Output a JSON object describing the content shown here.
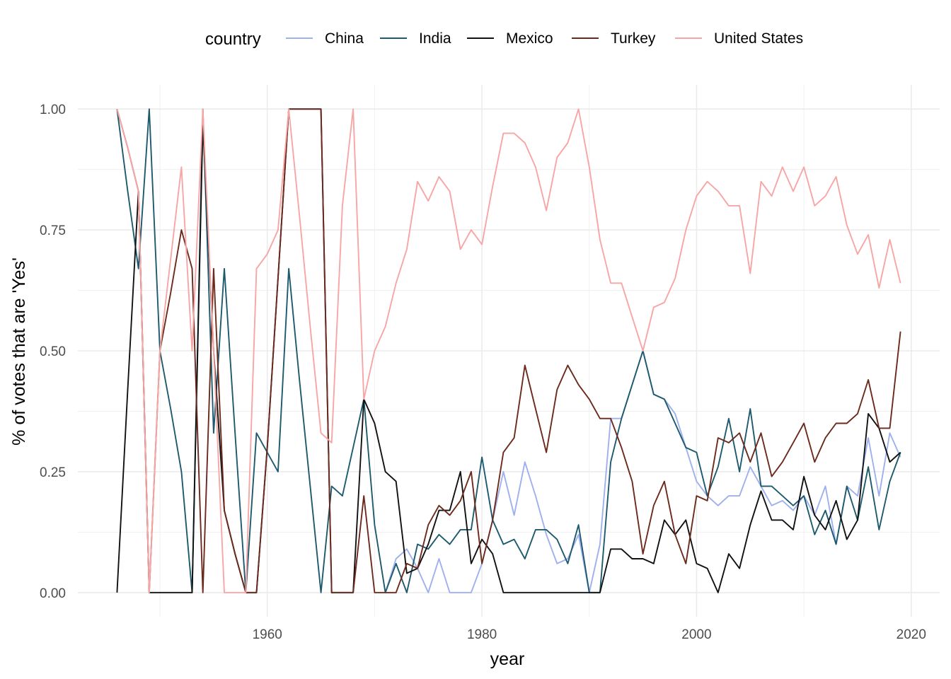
{
  "chart_data": {
    "type": "line",
    "title": "",
    "xlabel": "year",
    "ylabel": "% of votes that are 'Yes'",
    "xlim": [
      1946,
      2019
    ],
    "ylim": [
      0,
      1
    ],
    "x_ticks": [
      "1960",
      "1980",
      "2000",
      "2020"
    ],
    "x_tick_values": [
      1960,
      1980,
      2000,
      2020
    ],
    "y_ticks": [
      "0.00",
      "0.25",
      "0.50",
      "0.75",
      "1.00"
    ],
    "y_tick_values": [
      0,
      0.25,
      0.5,
      0.75,
      1.0
    ],
    "grid": true,
    "legend": {
      "title": "country",
      "position": "top"
    },
    "series": [
      {
        "name": "China",
        "color": "#9fb0ee",
        "x": [
          1971,
          1972,
          1973,
          1974,
          1975,
          1976,
          1977,
          1978,
          1979,
          1980,
          1981,
          1982,
          1983,
          1984,
          1985,
          1986,
          1987,
          1988,
          1989,
          1990,
          1991,
          1992,
          1993,
          1994,
          1995,
          1996,
          1997,
          1998,
          1999,
          2000,
          2001,
          2002,
          2003,
          2004,
          2005,
          2006,
          2007,
          2008,
          2009,
          2010,
          2011,
          2012,
          2013,
          2014,
          2015,
          2016,
          2017,
          2018,
          2019
        ],
        "values": [
          0.0,
          0.07,
          0.09,
          0.05,
          0.0,
          0.07,
          0.0,
          0.0,
          0.0,
          0.06,
          0.15,
          0.25,
          0.16,
          0.27,
          0.2,
          0.12,
          0.06,
          0.07,
          0.12,
          0.0,
          0.1,
          0.36,
          0.36,
          0.43,
          0.5,
          0.41,
          0.4,
          0.37,
          0.3,
          0.23,
          0.2,
          0.18,
          0.2,
          0.2,
          0.26,
          0.22,
          0.18,
          0.19,
          0.17,
          0.2,
          0.16,
          0.22,
          0.1,
          0.22,
          0.2,
          0.32,
          0.2,
          0.33,
          0.28
        ]
      },
      {
        "name": "India",
        "color": "#1d5a6e",
        "x": [
          1946,
          1947,
          1948,
          1949,
          1950,
          1951,
          1952,
          1953,
          1954,
          1955,
          1956,
          1957,
          1958,
          1959,
          1960,
          1961,
          1962,
          1963,
          1964,
          1965,
          1966,
          1967,
          1968,
          1969,
          1970,
          1971,
          1972,
          1973,
          1974,
          1975,
          1976,
          1977,
          1978,
          1979,
          1980,
          1981,
          1982,
          1983,
          1984,
          1985,
          1986,
          1987,
          1988,
          1989,
          1990,
          1991,
          1992,
          1993,
          1994,
          1995,
          1996,
          1997,
          1998,
          1999,
          2000,
          2001,
          2002,
          2003,
          2004,
          2005,
          2006,
          2007,
          2008,
          2009,
          2010,
          2011,
          2012,
          2013,
          2014,
          2015,
          2016,
          2017,
          2018,
          2019
        ],
        "values": [
          1.0,
          0.83,
          0.67,
          1.0,
          0.5,
          0.38,
          0.25,
          0.0,
          1.0,
          0.33,
          0.67,
          0.33,
          0.0,
          0.33,
          0.29,
          0.25,
          0.67,
          0.44,
          0.22,
          0.0,
          0.22,
          0.2,
          0.3,
          0.4,
          0.14,
          0.0,
          0.06,
          0.0,
          0.1,
          0.09,
          0.12,
          0.1,
          0.13,
          0.13,
          0.28,
          0.15,
          0.1,
          0.11,
          0.07,
          0.13,
          0.13,
          0.11,
          0.06,
          0.14,
          0.0,
          0.0,
          0.27,
          0.36,
          0.43,
          0.5,
          0.41,
          0.4,
          0.35,
          0.3,
          0.29,
          0.2,
          0.26,
          0.36,
          0.25,
          0.38,
          0.22,
          0.22,
          0.2,
          0.18,
          0.2,
          0.12,
          0.17,
          0.1,
          0.22,
          0.15,
          0.26,
          0.13,
          0.23,
          0.29
        ]
      },
      {
        "name": "Mexico",
        "color": "#111111",
        "x": [
          1946,
          1947,
          1948,
          1949,
          1950,
          1951,
          1952,
          1953,
          1954,
          1955,
          1956,
          1957,
          1958,
          1959,
          1960,
          1961,
          1962,
          1963,
          1964,
          1965,
          1966,
          1967,
          1968,
          1969,
          1970,
          1971,
          1972,
          1973,
          1974,
          1975,
          1976,
          1977,
          1978,
          1979,
          1980,
          1981,
          1982,
          1983,
          1984,
          1985,
          1986,
          1987,
          1988,
          1989,
          1990,
          1991,
          1992,
          1993,
          1994,
          1995,
          1996,
          1997,
          1998,
          1999,
          2000,
          2001,
          2002,
          2003,
          2004,
          2005,
          2006,
          2007,
          2008,
          2009,
          2010,
          2011,
          2012,
          2013,
          2014,
          2015,
          2016,
          2017,
          2018,
          2019
        ],
        "values": [
          0.0,
          0.42,
          0.83,
          0.0,
          0.0,
          0.0,
          0.0,
          0.0,
          0.97,
          0.5,
          0.17,
          0.08,
          0.0,
          0.0,
          0.3,
          0.65,
          1.0,
          1.0,
          1.0,
          1.0,
          0.0,
          0.0,
          0.0,
          0.4,
          0.35,
          0.25,
          0.23,
          0.04,
          0.05,
          0.1,
          0.17,
          0.17,
          0.25,
          0.06,
          0.11,
          0.08,
          0.0,
          0.0,
          0.0,
          0.0,
          0.0,
          0.0,
          0.0,
          0.0,
          0.0,
          0.0,
          0.09,
          0.09,
          0.07,
          0.07,
          0.06,
          0.15,
          0.12,
          0.15,
          0.06,
          0.05,
          0.0,
          0.08,
          0.05,
          0.14,
          0.21,
          0.15,
          0.15,
          0.13,
          0.24,
          0.16,
          0.13,
          0.19,
          0.11,
          0.15,
          0.37,
          0.34,
          0.27,
          0.29
        ]
      },
      {
        "name": "Turkey",
        "color": "#6b2a1c",
        "x": [
          1946,
          1947,
          1948,
          1949,
          1950,
          1951,
          1952,
          1953,
          1954,
          1955,
          1956,
          1957,
          1958,
          1959,
          1960,
          1961,
          1962,
          1963,
          1964,
          1965,
          1966,
          1967,
          1968,
          1969,
          1970,
          1971,
          1972,
          1973,
          1974,
          1975,
          1976,
          1977,
          1978,
          1979,
          1980,
          1981,
          1982,
          1983,
          1984,
          1985,
          1986,
          1987,
          1988,
          1989,
          1990,
          1991,
          1992,
          1993,
          1994,
          1995,
          1996,
          1997,
          1998,
          1999,
          2000,
          2001,
          2002,
          2003,
          2004,
          2005,
          2006,
          2007,
          2008,
          2009,
          2010,
          2011,
          2012,
          2013,
          2014,
          2015,
          2016,
          2017,
          2018,
          2019
        ],
        "values": [
          1.0,
          0.92,
          0.83,
          0.0,
          0.5,
          0.62,
          0.75,
          0.67,
          0.0,
          0.67,
          0.17,
          0.08,
          0.0,
          0.0,
          0.3,
          0.65,
          1.0,
          1.0,
          1.0,
          1.0,
          0.0,
          0.0,
          0.0,
          0.2,
          0.0,
          0.0,
          0.0,
          0.06,
          0.05,
          0.14,
          0.18,
          0.16,
          0.19,
          0.25,
          0.06,
          0.15,
          0.29,
          0.32,
          0.47,
          0.38,
          0.29,
          0.42,
          0.47,
          0.43,
          0.4,
          0.36,
          0.36,
          0.3,
          0.23,
          0.08,
          0.18,
          0.23,
          0.12,
          0.06,
          0.2,
          0.19,
          0.32,
          0.31,
          0.33,
          0.27,
          0.33,
          0.24,
          0.27,
          0.31,
          0.35,
          0.27,
          0.32,
          0.35,
          0.35,
          0.37,
          0.44,
          0.34,
          0.34,
          0.54
        ]
      },
      {
        "name": "United States",
        "color": "#f7a5a5",
        "x": [
          1946,
          1947,
          1948,
          1949,
          1950,
          1951,
          1952,
          1953,
          1954,
          1955,
          1956,
          1957,
          1958,
          1959,
          1960,
          1961,
          1962,
          1963,
          1964,
          1965,
          1966,
          1967,
          1968,
          1969,
          1970,
          1971,
          1972,
          1973,
          1974,
          1975,
          1976,
          1977,
          1978,
          1979,
          1980,
          1981,
          1982,
          1983,
          1984,
          1985,
          1986,
          1987,
          1988,
          1989,
          1990,
          1991,
          1992,
          1993,
          1994,
          1995,
          1996,
          1997,
          1998,
          1999,
          2000,
          2001,
          2002,
          2003,
          2004,
          2005,
          2006,
          2007,
          2008,
          2009,
          2010,
          2011,
          2012,
          2013,
          2014,
          2015,
          2016,
          2017,
          2018,
          2019
        ],
        "values": [
          1.0,
          0.92,
          0.83,
          0.0,
          0.5,
          0.69,
          0.88,
          0.5,
          1.0,
          0.5,
          0.0,
          0.0,
          0.0,
          0.67,
          0.7,
          0.75,
          1.0,
          0.78,
          0.55,
          0.33,
          0.31,
          0.8,
          1.0,
          0.4,
          0.5,
          0.55,
          0.64,
          0.71,
          0.85,
          0.81,
          0.86,
          0.83,
          0.71,
          0.75,
          0.72,
          0.84,
          0.95,
          0.95,
          0.93,
          0.88,
          0.79,
          0.9,
          0.93,
          1.0,
          0.88,
          0.73,
          0.64,
          0.64,
          0.57,
          0.5,
          0.59,
          0.6,
          0.65,
          0.75,
          0.82,
          0.85,
          0.83,
          0.8,
          0.8,
          0.66,
          0.85,
          0.82,
          0.88,
          0.83,
          0.88,
          0.8,
          0.82,
          0.86,
          0.76,
          0.7,
          0.74,
          0.63,
          0.73,
          0.64
        ]
      }
    ]
  }
}
